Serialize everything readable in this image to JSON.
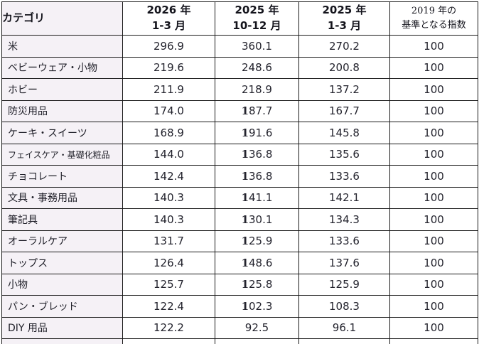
{
  "colors": {
    "border": "#1a1a1a",
    "category_column_bg": "#f5f1f6",
    "cell_bg": "#ffffff",
    "text": "#23232d"
  },
  "table": {
    "columns": [
      {
        "label": "カテゴリ"
      },
      {
        "line1": "2026 年",
        "line2": "1-3 月"
      },
      {
        "line1": "2025 年",
        "line2": "10-12 月"
      },
      {
        "line1": "2025 年",
        "line2": "1-3 月"
      },
      {
        "line1": "2019 年の",
        "line2": "基準となる指数"
      }
    ],
    "rows": [
      {
        "category": "米",
        "values": [
          "296.9",
          "360.1",
          "270.2",
          "100"
        ]
      },
      {
        "category": "ベビーウェア・小物",
        "values": [
          "219.6",
          "248.6",
          "200.8",
          "100"
        ]
      },
      {
        "category": "ホビー",
        "values": [
          "211.9",
          "218.9",
          "137.2",
          "100"
        ]
      },
      {
        "category": "防災用品",
        "values": [
          "174.0",
          "187.7",
          "167.7",
          "100"
        ]
      },
      {
        "category": "ケーキ・スイーツ",
        "values": [
          "168.9",
          "191.6",
          "145.8",
          "100"
        ]
      },
      {
        "category": "フェイスケア・基礎化粧品",
        "values": [
          "144.0",
          "136.8",
          "135.6",
          "100"
        ]
      },
      {
        "category": "チョコレート",
        "values": [
          "142.4",
          "136.8",
          "133.6",
          "100"
        ]
      },
      {
        "category": "文具・事務用品",
        "values": [
          "140.3",
          "141.1",
          "142.1",
          "100"
        ]
      },
      {
        "category": "筆記具",
        "values": [
          "140.3",
          "130.1",
          "134.3",
          "100"
        ]
      },
      {
        "category": "オーラルケア",
        "values": [
          "131.7",
          "125.9",
          "133.6",
          "100"
        ]
      },
      {
        "category": "トップス",
        "values": [
          "126.4",
          "148.6",
          "137.6",
          "100"
        ]
      },
      {
        "category": "小物",
        "values": [
          "125.7",
          "125.8",
          "125.9",
          "100"
        ]
      },
      {
        "category": "パン・ブレッド",
        "values": [
          "122.4",
          "102.3",
          "108.3",
          "100"
        ]
      },
      {
        "category": "DIY 用品",
        "values": [
          "122.2",
          "92.5",
          "96.1",
          "100"
        ]
      }
    ]
  }
}
